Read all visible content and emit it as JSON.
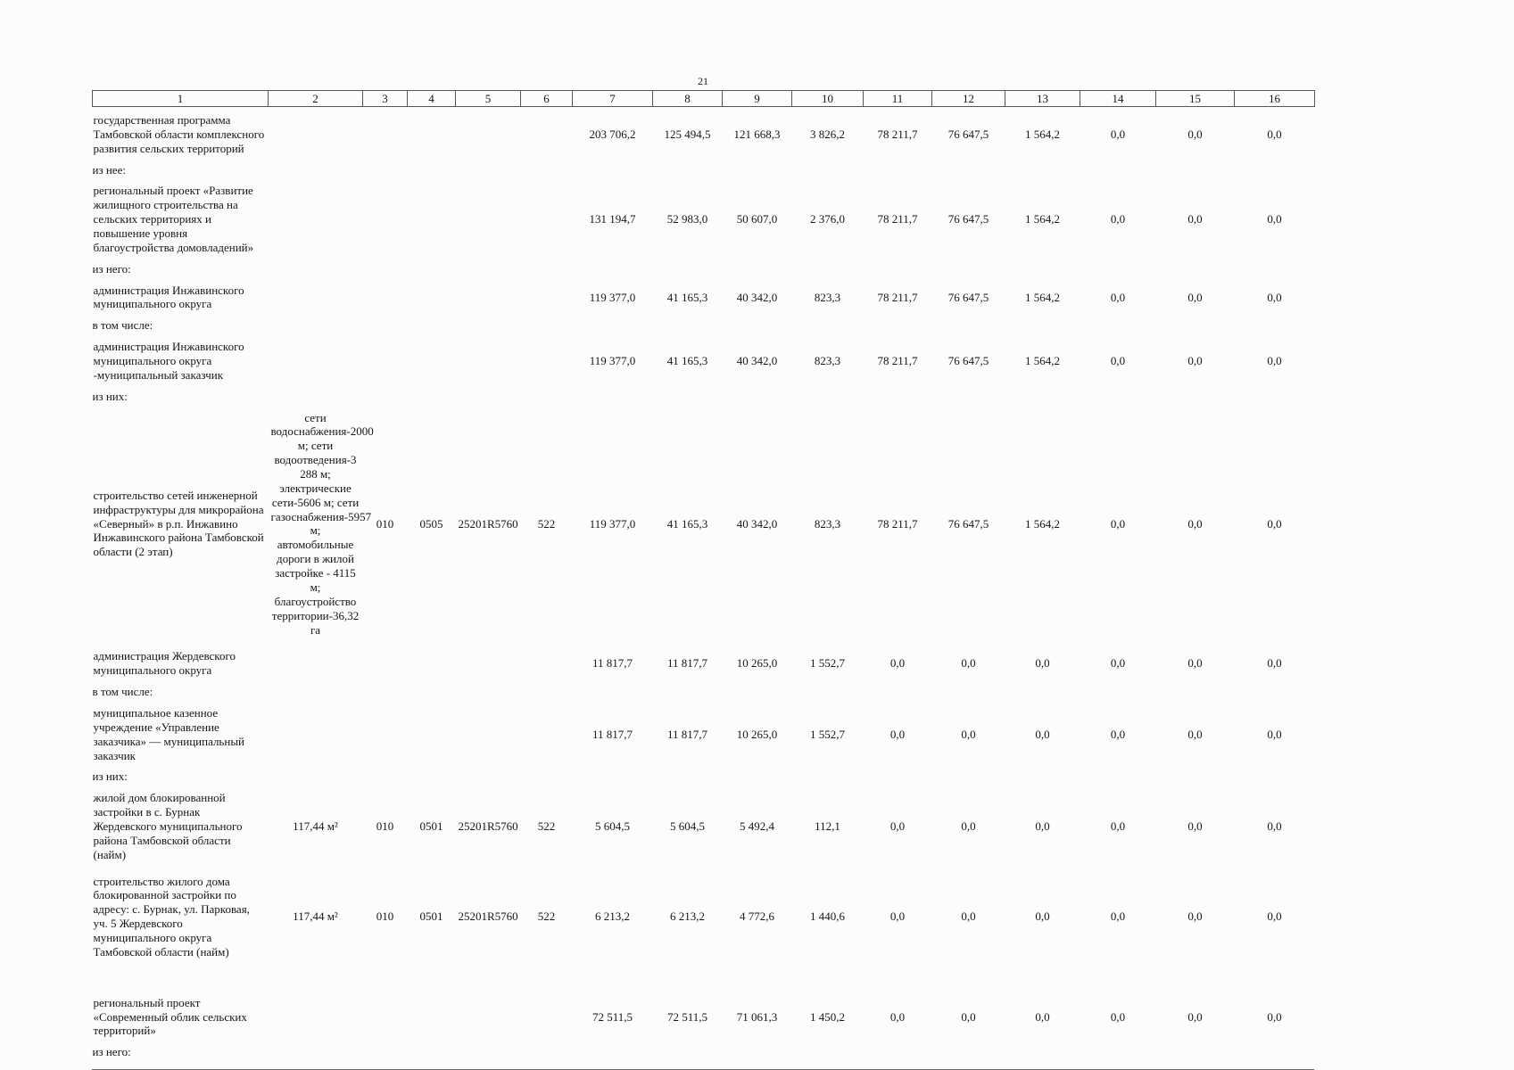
{
  "page": {
    "number": "21"
  },
  "table": {
    "header_cols": [
      "1",
      "2",
      "3",
      "4",
      "5",
      "6",
      "7",
      "8",
      "9",
      "10",
      "11",
      "12",
      "13",
      "14",
      "15",
      "16"
    ],
    "rows": [
      {
        "type": "data",
        "cells": [
          "государственная программа Тамбовской области комплексного развития сельских территорий",
          "",
          "",
          "",
          "",
          "",
          "203 706,2",
          "125 494,5",
          "121 668,3",
          "3 826,2",
          "78 211,7",
          "76 647,5",
          "1 564,2",
          "0,0",
          "0,0",
          "0,0"
        ]
      },
      {
        "type": "label",
        "cells": [
          "из нее:"
        ]
      },
      {
        "type": "data",
        "cells": [
          "региональный проект «Развитие жилищного строительства на сельских территориях и повышение уровня благоустройства домовладений»",
          "",
          "",
          "",
          "",
          "",
          "131 194,7",
          "52 983,0",
          "50 607,0",
          "2 376,0",
          "78 211,7",
          "76 647,5",
          "1 564,2",
          "0,0",
          "0,0",
          "0,0"
        ]
      },
      {
        "type": "label",
        "cells": [
          "из него:"
        ]
      },
      {
        "type": "data",
        "cells": [
          "администрация Инжавинского муниципального округа",
          "",
          "",
          "",
          "",
          "",
          "119 377,0",
          "41 165,3",
          "40 342,0",
          "823,3",
          "78 211,7",
          "76 647,5",
          "1 564,2",
          "0,0",
          "0,0",
          "0,0"
        ]
      },
      {
        "type": "label",
        "cells": [
          "в том числе:"
        ]
      },
      {
        "type": "data",
        "cells": [
          "администрация Инжавинского муниципального округа -муниципальный заказчик",
          "",
          "",
          "",
          "",
          "",
          "119 377,0",
          "41 165,3",
          "40 342,0",
          "823,3",
          "78 211,7",
          "76 647,5",
          "1 564,2",
          "0,0",
          "0,0",
          "0,0"
        ]
      },
      {
        "type": "label",
        "cells": [
          "из них:"
        ]
      },
      {
        "type": "data",
        "cells": [
          "строительство сетей инженерной инфраструктуры для микрорайона «Северный» в р.п. Инжавино Инжавинского района Тамбовской области (2 этап)",
          "сети водоснабжения-2000 м; сети водоотведения-3 288 м; электрические сети-5606 м; сети газоснабжения-5957 м; автомобильные дороги в жилой застройке - 4115 м; благоустройство территории-36,32 га",
          "010",
          "0505",
          "25201R5760",
          "522",
          "119 377,0",
          "41 165,3",
          "40 342,0",
          "823,3",
          "78 211,7",
          "76 647,5",
          "1 564,2",
          "0,0",
          "0,0",
          "0,0"
        ]
      },
      {
        "type": "data",
        "cells": [
          "администрация Жердевского муниципального округа",
          "",
          "",
          "",
          "",
          "",
          "11 817,7",
          "11 817,7",
          "10 265,0",
          "1 552,7",
          "0,0",
          "0,0",
          "0,0",
          "0,0",
          "0,0",
          "0,0"
        ]
      },
      {
        "type": "label",
        "cells": [
          "в том числе:"
        ]
      },
      {
        "type": "data",
        "cells": [
          "муниципальное казенное учреждение «Управление заказчика» — муниципальный заказчик",
          "",
          "",
          "",
          "",
          "",
          "11 817,7",
          "11 817,7",
          "10 265,0",
          "1 552,7",
          "0,0",
          "0,0",
          "0,0",
          "0,0",
          "0,0",
          "0,0"
        ]
      },
      {
        "type": "label",
        "cells": [
          "из них:"
        ]
      },
      {
        "type": "data",
        "cells": [
          "жилой дом блокированной застройки в с. Бурнак Жердевского муниципального района Тамбовской области (найм)",
          "117,44 м²",
          "010",
          "0501",
          "25201R5760",
          "522",
          "5 604,5",
          "5 604,5",
          "5 492,4",
          "112,1",
          "0,0",
          "0,0",
          "0,0",
          "0,0",
          "0,0",
          "0,0"
        ]
      },
      {
        "type": "data",
        "cells": [
          "строительство жилого дома блокированной застройки по адресу: с. Бурнак, ул. Парковая, уч. 5 Жердевского муниципального округа  Тамбовской области (найм)",
          "117,44 м²",
          "010",
          "0501",
          "25201R5760",
          "522",
          "6 213,2",
          "6 213,2",
          "4 772,6",
          "1 440,6",
          "0,0",
          "0,0",
          "0,0",
          "0,0",
          "0,0",
          "0,0"
        ]
      },
      {
        "type": "data gap",
        "cells": [
          "региональный проект «Современный облик сельских территорий»",
          "",
          "",
          "",
          "",
          "",
          "72 511,5",
          "72 511,5",
          "71 061,3",
          "1 450,2",
          "0,0",
          "0,0",
          "0,0",
          "0,0",
          "0,0",
          "0,0"
        ]
      },
      {
        "type": "label",
        "cells": [
          "из него:"
        ]
      }
    ]
  }
}
